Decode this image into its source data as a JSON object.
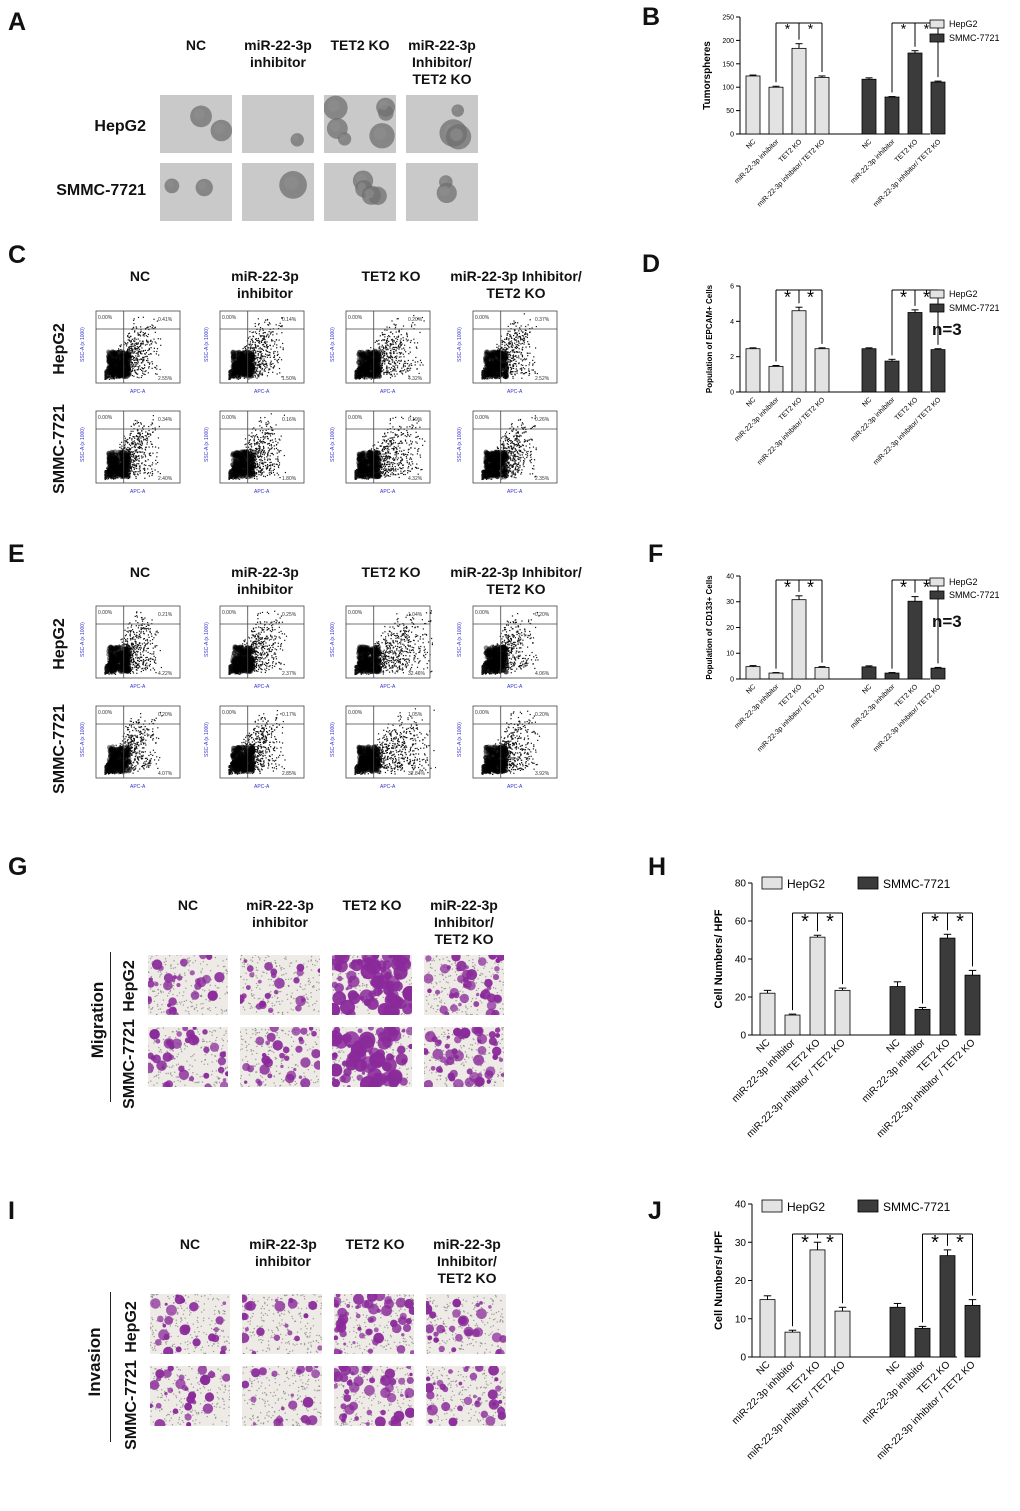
{
  "panels": {
    "A": "A",
    "B": "B",
    "C": "C",
    "D": "D",
    "E": "E",
    "F": "F",
    "G": "G",
    "H": "H",
    "I": "I",
    "J": "J"
  },
  "cols_4": [
    "NC",
    "miR-22-3p\ninhibitor",
    "TET2 KO",
    "miR-22-3p\nInhibitor/\nTET2 KO"
  ],
  "cols_flow": [
    "NC",
    "miR-22-3p\ninhibitor",
    "TET2 KO",
    "miR-22-3p Inhibitor/\nTET2 KO"
  ],
  "rows": {
    "hepg2": "HepG2",
    "smmc": "SMMC-7721",
    "migration": "Migration",
    "invasion": "Invasion"
  },
  "n_label": "n=3",
  "flow": {
    "axis_y": "SSC-A (x 1000)",
    "axis_x": "APC-A",
    "C": {
      "hepg2": [
        [
          "0.41%",
          "2.55%"
        ],
        [
          "0.14%",
          "1.50%"
        ],
        [
          "0.20%",
          "4.32%"
        ],
        [
          "0.37%",
          "2.52%"
        ]
      ],
      "smmc": [
        [
          "0.34%",
          "2.40%"
        ],
        [
          "0.16%",
          "1.80%"
        ],
        [
          "0.19%",
          "4.32%"
        ],
        [
          "0.26%",
          "2.35%"
        ]
      ]
    },
    "E": {
      "hepg2": [
        [
          "0.21%",
          "4.22%"
        ],
        [
          "0.25%",
          "2.37%"
        ],
        [
          "1.04%",
          "32.46%"
        ],
        [
          "0.20%",
          "4.06%"
        ]
      ],
      "smmc": [
        [
          "0.20%",
          "4.07%"
        ],
        [
          "0.17%",
          "2.85%"
        ],
        [
          "1.05%",
          "32.84%"
        ],
        [
          "0.20%",
          "3.92%"
        ]
      ]
    }
  },
  "colors": {
    "hepg2": "#e3e3e3",
    "smmc": "#3b3b3b",
    "stain": "#8a2a9a",
    "sphere": "#6f6f6f"
  },
  "chart_data": [
    {
      "id": "B",
      "type": "bar",
      "ylabel": "Tumorspheres",
      "ylim": [
        0,
        250
      ],
      "yticks": [
        0,
        50,
        100,
        150,
        200,
        250
      ],
      "categories": [
        "NC",
        "miR-22-3p inhibitor",
        "TET2 KO",
        "miR-22-3p inhibitor/ TET2 KO"
      ],
      "series": [
        {
          "name": "HepG2",
          "values": [
            124,
            100,
            183,
            121
          ],
          "err": [
            2,
            2,
            10,
            3
          ]
        },
        {
          "name": "SMMC-7721",
          "values": [
            117,
            79,
            173,
            111
          ],
          "err": [
            3,
            1,
            5,
            2
          ]
        }
      ],
      "legend": "top-right"
    },
    {
      "id": "D",
      "type": "bar",
      "ylabel": "Population of EPCAM+ Cells",
      "ylim": [
        0,
        6
      ],
      "yticks": [
        0,
        2,
        4,
        6
      ],
      "categories": [
        "NC",
        "miR-22-3p inhibitor",
        "TET2 KO",
        "miR-22-3p inhibitor/ TET2 KO"
      ],
      "series": [
        {
          "name": "HepG2",
          "values": [
            2.45,
            1.45,
            4.6,
            2.45
          ],
          "err": [
            0.05,
            0.05,
            0.2,
            0.05
          ]
        },
        {
          "name": "SMMC-7721",
          "values": [
            2.45,
            1.75,
            4.5,
            2.4
          ],
          "err": [
            0.05,
            0.1,
            0.15,
            0.05
          ]
        }
      ],
      "legend": "top-right"
    },
    {
      "id": "F",
      "type": "bar",
      "ylabel": "Population of CD133+ Cells",
      "ylim": [
        0,
        40
      ],
      "yticks": [
        0,
        10,
        20,
        30,
        40
      ],
      "categories": [
        "NC",
        "miR-22-3p inhibitor",
        "TET2 KO",
        "miR-22-3p inhibitor/ TET2 KO"
      ],
      "series": [
        {
          "name": "HepG2",
          "values": [
            4.8,
            2.3,
            30.8,
            4.5
          ],
          "err": [
            0.4,
            0.2,
            1.5,
            0.3
          ]
        },
        {
          "name": "SMMC-7721",
          "values": [
            4.7,
            2.3,
            30.2,
            4.2
          ],
          "err": [
            0.4,
            0.2,
            1.8,
            0.3
          ]
        }
      ],
      "legend": "top-right"
    },
    {
      "id": "H",
      "type": "bar",
      "ylabel": "Cell Numbers/ HPF",
      "ylim": [
        0,
        80
      ],
      "yticks": [
        0,
        20,
        40,
        60,
        80
      ],
      "categories": [
        "NC",
        "miR-22-3p inhibitor",
        "TET2 KO",
        "miR-22-3p inhibitor / TET2 KO"
      ],
      "series": [
        {
          "name": "HepG2",
          "values": [
            22,
            10.5,
            51.5,
            23.5
          ],
          "err": [
            1.5,
            0.5,
            1,
            1.2
          ]
        },
        {
          "name": "SMMC-7721",
          "values": [
            25.5,
            13.5,
            51,
            31.5
          ],
          "err": [
            2.5,
            1,
            2,
            2.5
          ]
        }
      ],
      "legend": "top"
    },
    {
      "id": "J",
      "type": "bar",
      "ylabel": "Cell Numbers/ HPF",
      "ylim": [
        0,
        40
      ],
      "yticks": [
        0,
        10,
        20,
        30,
        40
      ],
      "categories": [
        "NC",
        "miR-22-3p inhibitor",
        "TET2 KO",
        "miR-22-3p inhibitor / TET2 KO"
      ],
      "series": [
        {
          "name": "HepG2",
          "values": [
            15,
            6.5,
            28,
            12
          ],
          "err": [
            1,
            0.5,
            2,
            1
          ]
        },
        {
          "name": "SMMC-7721",
          "values": [
            13,
            7.5,
            26.5,
            13.5
          ],
          "err": [
            1,
            0.5,
            1.5,
            1.5
          ]
        }
      ],
      "legend": "top"
    }
  ]
}
